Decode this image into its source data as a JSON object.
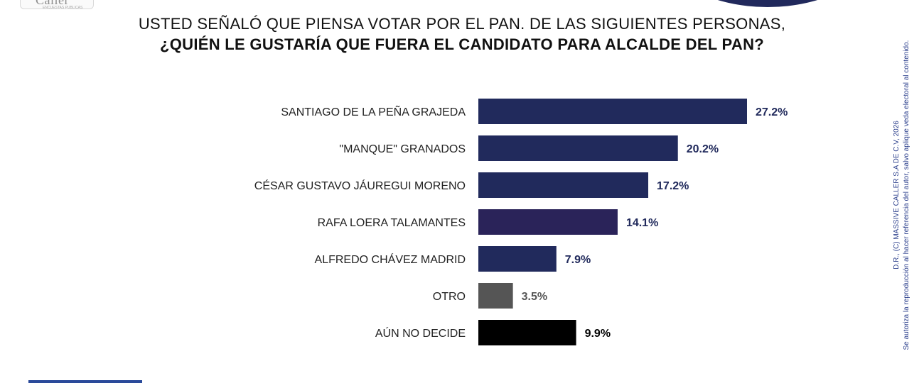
{
  "logo": {
    "text": "Caller",
    "subtext": "ENCUESTAS PUBLICAS"
  },
  "title_line1": "USTED SEÑALÓ QUE PIENSA VOTAR POR EL PAN. DE LAS SIGUIENTES PERSONAS,",
  "title_line2": "¿QUIÉN LE GUSTARÍA QUE FUERA EL CANDIDATO PARA ALCALDE DEL PAN?",
  "copyright_line1": "D.R., (C) MASSIVE CALLER S.A DE C.V, 2026",
  "copyright_line2": "Se autoriza la reproducción al hacer referencia del autor, salvo aplique veda electoral al contenido.",
  "colors": {
    "bar_primary": "#212a5c",
    "bar_highlight": "#2a2359",
    "bar_other": "#555555",
    "bar_undecided": "#000000"
  },
  "chart_data": {
    "type": "bar",
    "orientation": "horizontal",
    "title": "¿QUIÉN LE GUSTARÍA QUE FUERA EL CANDIDATO PARA ALCALDE DEL PAN?",
    "categories": [
      "SANTIAGO DE LA PEÑA GRAJEDA",
      "\"MANQUE\" GRANADOS",
      "CÉSAR GUSTAVO JÁUREGUI MORENO",
      "RAFA LOERA TALAMANTES",
      "ALFREDO CHÁVEZ MADRID",
      "OTRO",
      "AÚN NO DECIDE"
    ],
    "values": [
      27.2,
      20.2,
      17.2,
      14.1,
      7.9,
      3.5,
      9.9
    ],
    "value_labels": [
      "27.2%",
      "20.2%",
      "17.2%",
      "14.1%",
      "7.9%",
      "3.5%",
      "9.9%"
    ],
    "bar_colors": [
      "#212a5c",
      "#212a5c",
      "#212a5c",
      "#2a2359",
      "#212a5c",
      "#555555",
      "#000000"
    ],
    "label_colors": [
      "#212a5c",
      "#212a5c",
      "#212a5c",
      "#212a5c",
      "#212a5c",
      "#555555",
      "#000000"
    ],
    "xlim": [
      0,
      27.2
    ],
    "grid": false,
    "legend": "none"
  }
}
